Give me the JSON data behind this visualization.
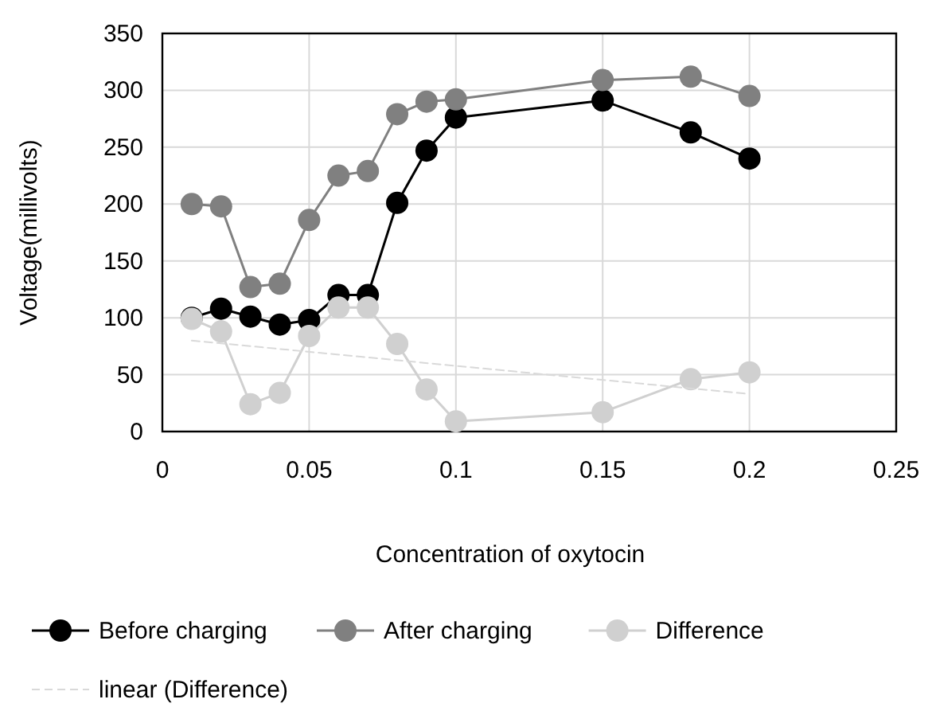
{
  "chart_data": {
    "type": "line",
    "xlabel": "Concentration of oxytocin",
    "ylabel": "Voltage(millivolts)",
    "xlim": [
      0,
      0.25
    ],
    "xticks": [
      0,
      0.05,
      0.1,
      0.15,
      0.2,
      0.25
    ],
    "ylim": [
      0,
      350
    ],
    "yticks": [
      0,
      50,
      100,
      150,
      200,
      250,
      300,
      350
    ],
    "grid": true,
    "legend": "bottom",
    "marker": "circle",
    "series": [
      {
        "name": "Before charging",
        "color": "#000000",
        "x": [
          0.01,
          0.02,
          0.03,
          0.04,
          0.05,
          0.06,
          0.07,
          0.08,
          0.09,
          0.1,
          0.15,
          0.18,
          0.2
        ],
        "values": [
          100,
          108,
          101,
          94,
          98,
          120,
          120,
          201,
          247,
          276,
          291,
          263,
          240
        ]
      },
      {
        "name": "After charging",
        "color": "#808080",
        "x": [
          0.01,
          0.02,
          0.03,
          0.04,
          0.05,
          0.06,
          0.07,
          0.08,
          0.09,
          0.1,
          0.15,
          0.18,
          0.2
        ],
        "values": [
          200,
          198,
          127,
          130,
          186,
          225,
          229,
          279,
          290,
          292,
          309,
          312,
          295
        ]
      },
      {
        "name": "Difference",
        "color": "#d0d0d0",
        "x": [
          0.01,
          0.02,
          0.03,
          0.04,
          0.05,
          0.06,
          0.07,
          0.08,
          0.09,
          0.1,
          0.15,
          0.18,
          0.2
        ],
        "values": [
          99,
          88,
          24,
          34,
          84,
          109,
          109,
          77,
          37,
          9,
          17,
          46,
          52
        ]
      },
      {
        "name": "linear (Difference)",
        "color": "#d9d9d9",
        "marker": "none",
        "line_style": "dashed",
        "x": [
          0.01,
          0.2
        ],
        "values": [
          80,
          33
        ]
      }
    ]
  }
}
